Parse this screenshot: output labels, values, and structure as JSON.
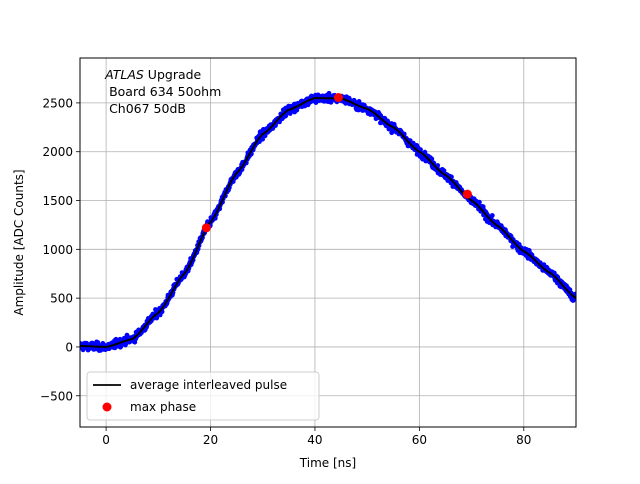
{
  "chart_data": {
    "type": "scatter",
    "title": "",
    "xlabel": "Time [ns]",
    "ylabel": "Amplitude [ADC Counts]",
    "xlim": [
      -5,
      90
    ],
    "ylim": [
      -820,
      2960
    ],
    "xticks": [
      0,
      20,
      40,
      60,
      80
    ],
    "yticks": [
      -500,
      0,
      500,
      1000,
      1500,
      2000,
      2500
    ],
    "grid": true,
    "annotation": {
      "lines": [
        {
          "italic": "ATLAS",
          "rest": " Upgrade"
        },
        {
          "italic": "",
          "rest": " Board 634 50ohm"
        },
        {
          "italic": "",
          "rest": " Ch067 50dB"
        }
      ]
    },
    "legend": {
      "placement": "lower-left",
      "entries": [
        {
          "label": "average interleaved pulse",
          "marker": "line",
          "color": "#000000"
        },
        {
          "label": "max phase",
          "marker": "dot",
          "color": "#ff0000"
        }
      ]
    },
    "series": [
      {
        "kind": "samples",
        "color": "#0000ff",
        "x": [
          -5,
          0,
          5,
          10,
          15,
          20,
          25,
          30,
          35,
          40,
          45,
          50,
          55,
          60,
          65,
          70,
          75,
          80,
          85,
          90
        ],
        "y": [
          10,
          0,
          80,
          350,
          750,
          1280,
          1780,
          2180,
          2430,
          2550,
          2545,
          2440,
          2250,
          2000,
          1760,
          1500,
          1240,
          980,
          760,
          500
        ]
      },
      {
        "name": "average interleaved pulse",
        "kind": "line",
        "color": "#000000",
        "x": [
          -5,
          0,
          5,
          10,
          15,
          20,
          25,
          30,
          35,
          40,
          45,
          50,
          55,
          60,
          65,
          70,
          75,
          80,
          85,
          90
        ],
        "y": [
          10,
          0,
          80,
          350,
          750,
          1280,
          1780,
          2180,
          2430,
          2550,
          2545,
          2440,
          2250,
          2000,
          1760,
          1500,
          1240,
          980,
          760,
          500
        ]
      },
      {
        "name": "max phase",
        "kind": "points",
        "color": "#ff0000",
        "x": [
          19.2,
          44.5,
          69.2
        ],
        "y": [
          1220,
          2555,
          1565
        ]
      }
    ]
  }
}
